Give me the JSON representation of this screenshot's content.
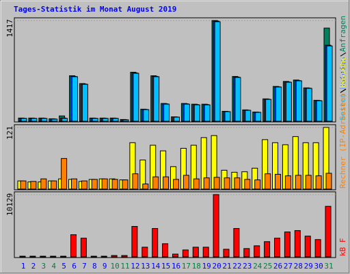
{
  "title": "Tages-Statistik im Monat August 2019",
  "chart_data": [
    {
      "type": "bar",
      "series": [
        {
          "name": "Anfragen",
          "color": "#00805c",
          "values": [
            45,
            45,
            45,
            35,
            75,
            640,
            530,
            45,
            45,
            45,
            25,
            690,
            170,
            640,
            250,
            62,
            250,
            240,
            240,
            1417,
            140,
            630,
            160,
            130,
            315,
            490,
            560,
            580,
            470,
            295,
            1311
          ]
        },
        {
          "name": "Dateien",
          "color": "#0040ff",
          "values": [
            42,
            42,
            42,
            32,
            45,
            632,
            524,
            42,
            42,
            42,
            22,
            680,
            166,
            632,
            245,
            60,
            245,
            235,
            235,
            1410,
            137,
            622,
            156,
            127,
            311,
            485,
            553,
            573,
            466,
            292,
            1070
          ]
        },
        {
          "name": "Seiten",
          "color": "#00c0ff",
          "values": [
            40,
            40,
            40,
            30,
            40,
            627,
            520,
            40,
            40,
            40,
            20,
            675,
            164,
            627,
            241,
            58,
            241,
            231,
            231,
            1400,
            135,
            617,
            154,
            125,
            308,
            482,
            549,
            569,
            463,
            289,
            1060
          ]
        }
      ],
      "ylim": [
        0,
        1417
      ],
      "yticks": [
        1417
      ]
    },
    {
      "type": "bar",
      "series": [
        {
          "name": "Besuche",
          "color": "#ffff00",
          "values": [
            16,
            14,
            14,
            16,
            20,
            19,
            15,
            19,
            20,
            20,
            18,
            91,
            57,
            86,
            75,
            44,
            80,
            86,
            101,
            105,
            37,
            33,
            34,
            41,
            97,
            91,
            87,
            103,
            91,
            91,
            121
          ]
        },
        {
          "name": "Rechner (IP-Adressen)",
          "color": "#ff8000",
          "values": [
            16,
            15,
            20,
            16,
            60,
            20,
            16,
            19,
            20,
            19,
            18,
            30,
            10,
            24,
            24,
            19,
            27,
            20,
            22,
            23,
            22,
            22,
            19,
            18,
            30,
            29,
            26,
            27,
            27,
            26,
            31
          ]
        }
      ],
      "ylim": [
        0,
        121
      ],
      "yticks": [
        121
      ]
    },
    {
      "type": "bar",
      "categories": [
        "1",
        "2",
        "3",
        "4",
        "5",
        "6",
        "7",
        "8",
        "9",
        "10",
        "11",
        "12",
        "13",
        "14",
        "15",
        "16",
        "17",
        "18",
        "19",
        "20",
        "21",
        "22",
        "23",
        "24",
        "25",
        "26",
        "27",
        "28",
        "29",
        "30",
        "31"
      ],
      "category_colors": [
        "#0000ff",
        "#0000ff",
        "#008040",
        "#008040",
        "#0000ff",
        "#0000ff",
        "#0000ff",
        "#0000ff",
        "#0000ff",
        "#008040",
        "#008040",
        "#0000ff",
        "#0000ff",
        "#0000ff",
        "#0000ff",
        "#0000ff",
        "#008040",
        "#008040",
        "#0000ff",
        "#0000ff",
        "#0000ff",
        "#0000ff",
        "#0000ff",
        "#008040",
        "#008040",
        "#0000ff",
        "#0000ff",
        "#0000ff",
        "#0000ff",
        "#0000ff",
        "#008040"
      ],
      "series": [
        {
          "name": "kB F",
          "color": "#ff0000",
          "values": [
            112,
            112,
            112,
            112,
            112,
            3601,
            3039,
            112,
            112,
            225,
            225,
            4951,
            1576,
            4614,
            2138,
            450,
            1125,
            1576,
            1576,
            10129,
            1238,
            4614,
            1351,
            1801,
            2476,
            3039,
            4051,
            4276,
            3376,
            2813,
            8216
          ]
        }
      ],
      "ylim": [
        0,
        10129
      ],
      "yticks": [
        10129
      ]
    }
  ]
}
